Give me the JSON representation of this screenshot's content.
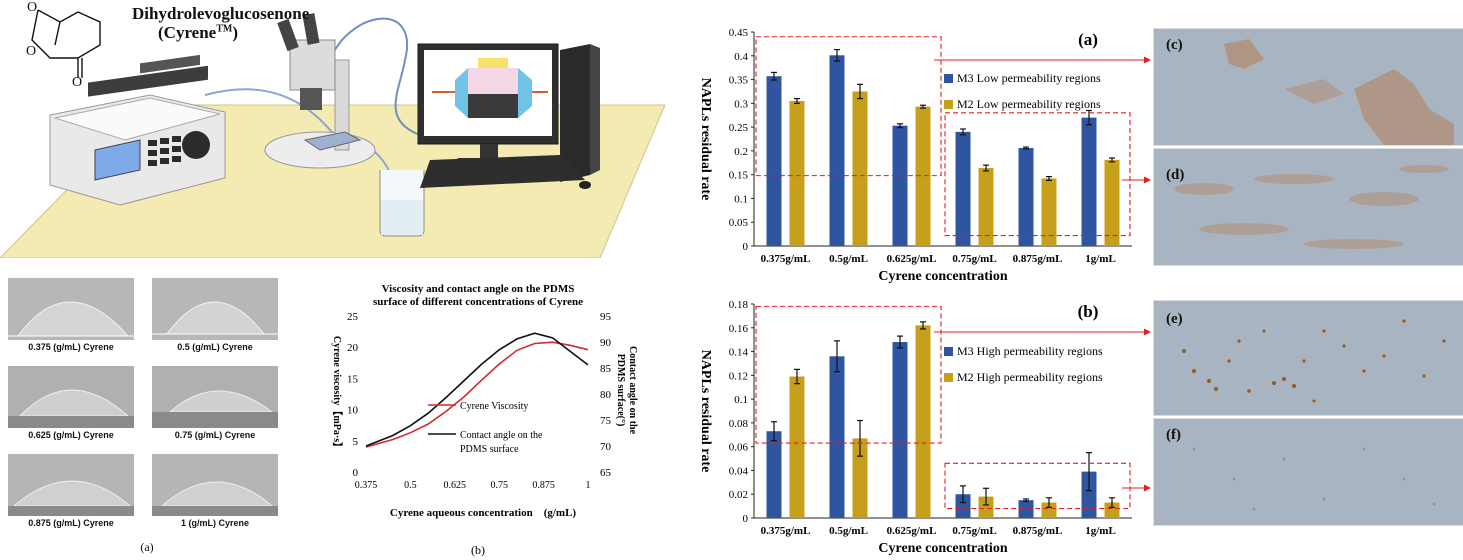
{
  "setup": {
    "chem_name": "Dihydrolevoglucosenone",
    "chem_brand": "(Cyrene",
    "chem_tm": "TM",
    "chem_close": ")",
    "atom_o1": "O",
    "atom_o2": "O",
    "atom_o3": "O"
  },
  "droplets": {
    "labels": [
      "0.375 (g/mL) Cyrene",
      "0.5 (g/mL) Cyrene",
      "0.625 (g/mL) Cyrene",
      "0.75 (g/mL) Cyrene",
      "0.875 (g/mL) Cyrene",
      "1 (g/mL) Cyrene"
    ],
    "caption": "(a)"
  },
  "micrographs": {
    "labels": [
      "(c)",
      "(d)",
      "(e)",
      "(f)"
    ]
  },
  "colors": {
    "m3": "#2f54a0",
    "m2": "#c7a01b",
    "viscosity": "#d42a2a",
    "contact": "#111111",
    "box": "#e02020"
  },
  "chart_data": [
    {
      "type": "line",
      "panel": "(b)",
      "title_line1": "Viscosity and contact angle on the PDMS",
      "title_line2": "surface of different concentrations of Cyrene",
      "xlabel": "Cyrene aqueous concentration　(g/mL)",
      "ylabel_left": "Cyrene viscosity【mPa·s】",
      "ylabel_right_1": "Contact angle on the",
      "ylabel_right_2": "PDMS surface(°)",
      "x_ticks": [
        "0.375",
        "0.5",
        "0.625",
        "0.75",
        "0.875",
        "1"
      ],
      "x_tick_values": [
        0.375,
        0.5,
        0.625,
        0.75,
        0.875,
        1
      ],
      "xlim": [
        0.375,
        1
      ],
      "y_left_ticks": [
        "0",
        "5",
        "10",
        "15",
        "20",
        "25"
      ],
      "ylim_left": [
        0,
        25
      ],
      "y_right_ticks": [
        "65",
        "70",
        "75",
        "80",
        "85",
        "90",
        "95"
      ],
      "ylim_right": [
        65,
        95
      ],
      "series": [
        {
          "name": "Cyrene Viscosity",
          "axis": "left",
          "x": [
            0.375,
            0.45,
            0.5,
            0.55,
            0.6,
            0.65,
            0.7,
            0.75,
            0.8,
            0.85,
            0.9,
            0.95,
            1.0
          ],
          "values": [
            4.0,
            5.2,
            6.3,
            7.7,
            9.7,
            12.0,
            14.7,
            17.3,
            19.5,
            20.6,
            20.8,
            20.3,
            19.6
          ]
        },
        {
          "name": "Contact angle on the PDMS surface",
          "legend_line1": "Contact angle on the",
          "legend_line2": "PDMS surface",
          "axis": "right",
          "x": [
            0.375,
            0.45,
            0.5,
            0.55,
            0.6,
            0.65,
            0.7,
            0.75,
            0.8,
            0.85,
            0.9,
            0.95,
            1.0
          ],
          "values": [
            70.0,
            72.0,
            73.9,
            76.3,
            79.3,
            82.5,
            85.7,
            88.5,
            90.6,
            91.7,
            90.8,
            88.2,
            85.6
          ]
        }
      ]
    },
    {
      "type": "bar",
      "panel": "(a)",
      "xlabel": "Cyrene concentration",
      "ylabel": "NAPLs residual rate",
      "categories": [
        "0.375g/mL",
        "0.5g/mL",
        "0.625g/mL",
        "0.75g/mL",
        "0.875g/mL",
        "1g/mL"
      ],
      "y_ticks": [
        "0",
        "0.05",
        "0.1",
        "0.15",
        "0.2",
        "0.25",
        "0.3",
        "0.35",
        "0.4",
        "0.45"
      ],
      "ylim": [
        0,
        0.45
      ],
      "series": [
        {
          "name": "M3 Low permeability regions",
          "values": [
            0.357,
            0.401,
            0.253,
            0.24,
            0.206,
            0.27
          ],
          "errors": [
            0.008,
            0.012,
            0.004,
            0.006,
            0.002,
            0.015
          ]
        },
        {
          "name": "M2 Low permeability regions",
          "values": [
            0.305,
            0.325,
            0.293,
            0.164,
            0.142,
            0.181
          ],
          "errors": [
            0.005,
            0.015,
            0.003,
            0.006,
            0.004,
            0.004
          ]
        }
      ]
    },
    {
      "type": "bar",
      "panel": "(b)",
      "xlabel": "Cyrene concentration",
      "ylabel": "NAPLs residual rate",
      "categories": [
        "0.375g/mL",
        "0.5g/mL",
        "0.625g/mL",
        "0.75g/mL",
        "0.875g/mL",
        "1g/mL"
      ],
      "y_ticks": [
        "0",
        "0.02",
        "0.04",
        "0.06",
        "0.08",
        "0.1",
        "0.12",
        "0.14",
        "0.16",
        "0.18"
      ],
      "ylim": [
        0,
        0.18
      ],
      "series": [
        {
          "name": "M3 High permeability regions",
          "values": [
            0.073,
            0.136,
            0.148,
            0.02,
            0.015,
            0.039
          ],
          "errors": [
            0.008,
            0.013,
            0.005,
            0.007,
            0.001,
            0.016
          ]
        },
        {
          "name": "M2 High permeability regions",
          "values": [
            0.119,
            0.067,
            0.162,
            0.018,
            0.013,
            0.013
          ],
          "errors": [
            0.006,
            0.015,
            0.003,
            0.007,
            0.004,
            0.004
          ]
        }
      ]
    }
  ]
}
